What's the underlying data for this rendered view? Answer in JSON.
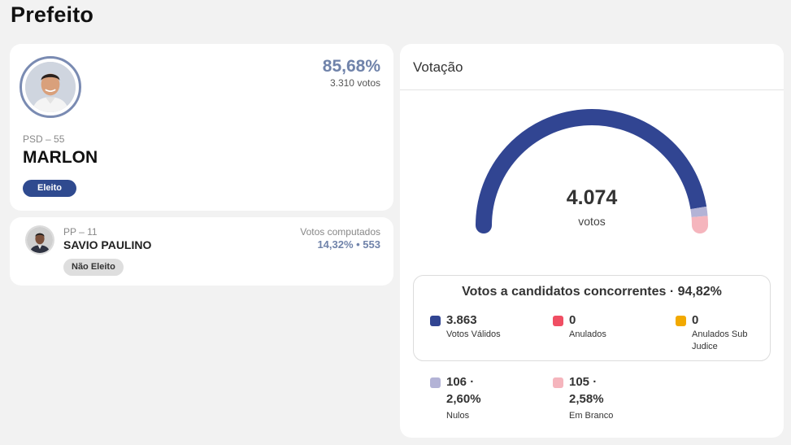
{
  "page": {
    "title": "Prefeito"
  },
  "elected": {
    "party": "PSD – 55",
    "name": "MARLON",
    "percent": "85,68%",
    "votes": "3.310 votos",
    "badge": "Eleito"
  },
  "second": {
    "party": "PP – 11",
    "name": "SAVIO PAULINO",
    "computed_label": "Votos computados",
    "stats": "14,32%  •  553",
    "badge": "Não Eleito"
  },
  "votacao": {
    "title": "Votação",
    "total": "4.074",
    "total_label": "votos",
    "competing_title": "Votos a candidatos concorrentes · 94,82%",
    "items": [
      {
        "value": "3.863",
        "label": "Votos Válidos",
        "color": "#314592"
      },
      {
        "value": "0",
        "label": "Anulados",
        "color": "#f04e63"
      },
      {
        "value": "0",
        "label": "Anulados Sub Judice",
        "color": "#f2a900"
      }
    ],
    "outer": [
      {
        "value": "106 · 2,60%",
        "label": "Nulos",
        "color": "#b3b3d6"
      },
      {
        "value": "105 · 2,58%",
        "label": "Em Branco",
        "color": "#f5b5bd"
      }
    ]
  },
  "chart_data": {
    "type": "pie",
    "title": "",
    "categories": [
      "Votos Válidos",
      "Nulos",
      "Em Branco"
    ],
    "values": [
      3863,
      106,
      105
    ],
    "colors": [
      "#314592",
      "#b3b3d6",
      "#f5b5bd"
    ],
    "total": 4074,
    "shape": "semicircle-gauge"
  }
}
